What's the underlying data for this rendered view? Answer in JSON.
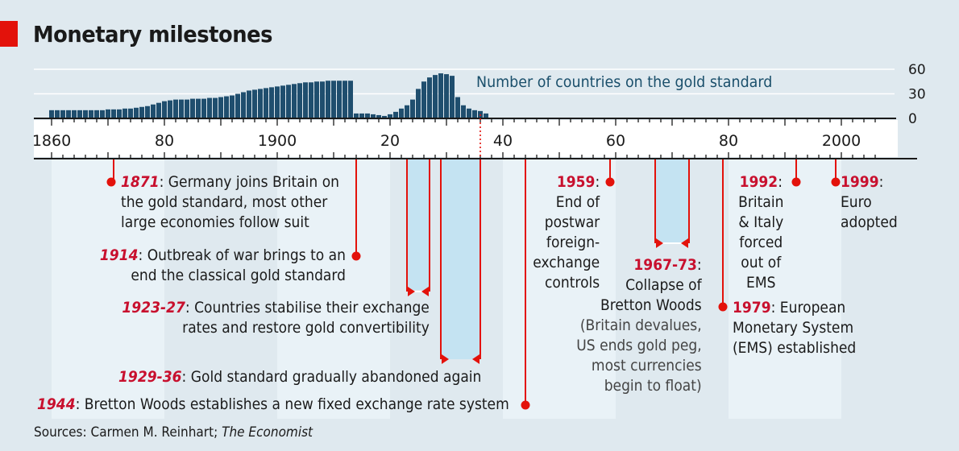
{
  "header": {
    "title": "Monetary milestones"
  },
  "chart_data": {
    "type": "bar",
    "title": "Number of countries on the gold standard",
    "xlabel": "",
    "ylabel": "",
    "ylim": [
      0,
      60
    ],
    "yticks": [
      0,
      30,
      60
    ],
    "xlim": [
      1858,
      2010
    ],
    "xticks": [
      {
        "year": 1860,
        "label": "1860"
      },
      {
        "year": 1880,
        "label": "80"
      },
      {
        "year": 1900,
        "label": "1900"
      },
      {
        "year": 1920,
        "label": "20"
      },
      {
        "year": 1940,
        "label": "40"
      },
      {
        "year": 1960,
        "label": "60"
      },
      {
        "year": 1980,
        "label": "80"
      },
      {
        "year": 2000,
        "label": "2000"
      }
    ],
    "grid": true,
    "x": [
      1860,
      1861,
      1862,
      1863,
      1864,
      1865,
      1866,
      1867,
      1868,
      1869,
      1870,
      1871,
      1872,
      1873,
      1874,
      1875,
      1876,
      1877,
      1878,
      1879,
      1880,
      1881,
      1882,
      1883,
      1884,
      1885,
      1886,
      1887,
      1888,
      1889,
      1890,
      1891,
      1892,
      1893,
      1894,
      1895,
      1896,
      1897,
      1898,
      1899,
      1900,
      1901,
      1902,
      1903,
      1904,
      1905,
      1906,
      1907,
      1908,
      1909,
      1910,
      1911,
      1912,
      1913,
      1914,
      1915,
      1916,
      1917,
      1918,
      1919,
      1920,
      1921,
      1922,
      1923,
      1924,
      1925,
      1926,
      1927,
      1928,
      1929,
      1930,
      1931,
      1932,
      1933,
      1934,
      1935,
      1936,
      1937
    ],
    "values": [
      10,
      10,
      10,
      10,
      10,
      10,
      10,
      10,
      10,
      10,
      11,
      11,
      11,
      12,
      12,
      13,
      14,
      15,
      17,
      19,
      21,
      22,
      23,
      23,
      23,
      24,
      24,
      24,
      25,
      25,
      26,
      27,
      28,
      30,
      32,
      34,
      35,
      36,
      37,
      38,
      39,
      40,
      41,
      42,
      43,
      44,
      44,
      45,
      45,
      46,
      46,
      46,
      46,
      46,
      6,
      6,
      6,
      5,
      4,
      3,
      5,
      8,
      12,
      16,
      23,
      36,
      45,
      50,
      53,
      55,
      54,
      52,
      26,
      16,
      12,
      10,
      9,
      6
    ]
  },
  "events": [
    {
      "year": "1871",
      "text_lines": [
        "Germany joins Britain on",
        "the gold standard, most other",
        "large economies follow suit"
      ]
    },
    {
      "year": "1914",
      "text_lines": [
        "Outbreak of war brings to an",
        "end the classical gold standard"
      ]
    },
    {
      "year": "1923-27",
      "text_lines": [
        "Countries stabilise their exchange",
        "rates and restore gold convertibility"
      ]
    },
    {
      "year": "1929-36",
      "text_lines": [
        "Gold standard gradually abandoned again"
      ]
    },
    {
      "year": "1944",
      "text_lines": [
        "Bretton Woods establishes a new fixed exchange rate system"
      ]
    },
    {
      "year": "1959",
      "text_lines": [
        "End of",
        "postwar",
        "foreign-",
        "exchange",
        "controls"
      ]
    },
    {
      "year": "1967-73",
      "text_lines": [
        "Collapse of",
        "Bretton Woods"
      ],
      "note_lines": [
        "(Britain devalues,",
        "US ends gold peg,",
        "most currencies",
        "begin to float)"
      ]
    },
    {
      "year": "1979",
      "text_lines": [
        "European",
        "Monetary System",
        "(EMS) established"
      ]
    },
    {
      "year": "1992",
      "text_lines": [
        "Britain",
        "& Italy",
        "forced",
        "out of",
        "EMS"
      ]
    },
    {
      "year": "1999",
      "text_lines": [
        "Euro",
        "adopted"
      ]
    }
  ],
  "footer": {
    "sources_prefix": "Sources: Carmen M. Reinhart; ",
    "sources_italic": "The Economist"
  },
  "colors": {
    "accent_red": "#e3120b",
    "bar": "#1f4e6e",
    "band": "#c4e3f2",
    "background": "#dfe9ef"
  }
}
